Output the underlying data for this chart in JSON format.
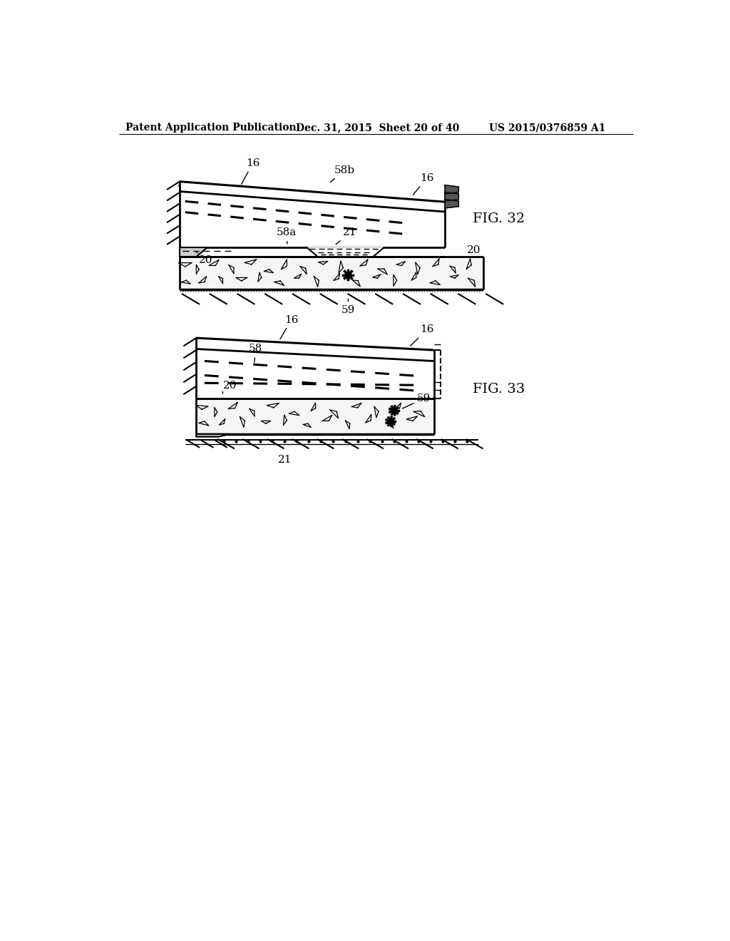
{
  "bg_color": "#ffffff",
  "header_text": "Patent Application Publication",
  "header_date": "Dec. 31, 2015  Sheet 20 of 40",
  "header_patent": "US 2015/0376859 A1",
  "fig32_label": "FIG. 32",
  "fig33_label": "FIG. 33"
}
